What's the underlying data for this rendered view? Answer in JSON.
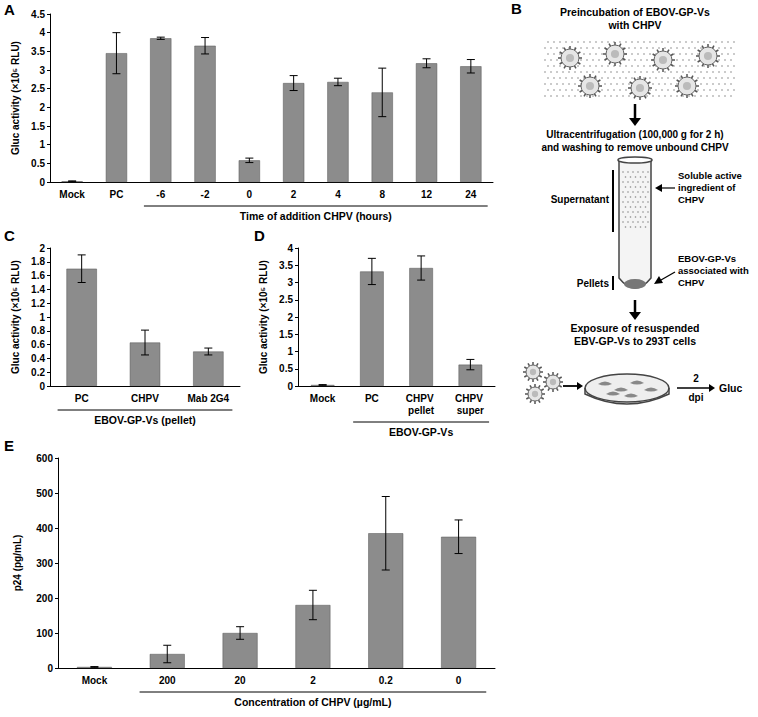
{
  "chart_data": [
    {
      "type": "bar",
      "title": "A",
      "categories": [
        "Mock",
        "PC",
        "-6",
        "-2",
        "0",
        "2",
        "4",
        "8",
        "12",
        "24"
      ],
      "values": [
        0.02,
        3.45,
        3.85,
        3.65,
        0.58,
        2.65,
        2.68,
        2.4,
        3.18,
        3.1
      ],
      "errors": [
        0.01,
        0.55,
        0.03,
        0.22,
        0.06,
        0.2,
        0.1,
        0.65,
        0.12,
        0.18
      ],
      "color": "#8c8c8c",
      "ylabel": "Gluc activity (×10⁵ RLU)",
      "xlabel": "Time of addition CHPV (hours)",
      "xlabel_span": [
        "-6",
        "24"
      ],
      "ylim": [
        0,
        4.5
      ],
      "yticks": [
        0,
        0.5,
        1,
        1.5,
        2,
        2.5,
        3,
        3.5,
        4,
        4.5
      ],
      "grid": false
    },
    {
      "type": "bar",
      "title": "C",
      "categories": [
        "PC",
        "CHPV",
        "Mab 2G4"
      ],
      "values": [
        1.7,
        0.63,
        0.5
      ],
      "errors": [
        0.2,
        0.18,
        0.05
      ],
      "color": "#8c8c8c",
      "ylabel": "Gluc activity (×10⁵ RLU)",
      "xlabel": "EBOV-GP-Vs (pellet)",
      "xlabel_span": [
        "PC",
        "Mab 2G4"
      ],
      "ylim": [
        0,
        2
      ],
      "yticks": [
        0,
        0.2,
        0.4,
        0.6,
        0.8,
        1,
        1.2,
        1.4,
        1.6,
        1.8,
        2
      ],
      "grid": false
    },
    {
      "type": "bar",
      "title": "D",
      "categories": [
        "Mock",
        "PC",
        "CHPV pellet",
        "CHPV super"
      ],
      "values": [
        0.03,
        3.32,
        3.42,
        0.62
      ],
      "errors": [
        0.01,
        0.38,
        0.35,
        0.15
      ],
      "color": "#8c8c8c",
      "ylabel": "Gluc activity (×10⁵ RLU)",
      "xlabel": "EBOV-GP-Vs",
      "xlabel_span": [
        "PC",
        "CHPV super"
      ],
      "ylim": [
        0,
        4
      ],
      "yticks": [
        0,
        0.5,
        1,
        1.5,
        2,
        2.5,
        3,
        3.5,
        4
      ],
      "grid": false
    },
    {
      "type": "bar",
      "title": "E",
      "categories": [
        "Mock",
        "200",
        "20",
        "2",
        "0.2",
        "0"
      ],
      "values": [
        3,
        40,
        100,
        180,
        385,
        375
      ],
      "errors": [
        1,
        25,
        18,
        42,
        105,
        48
      ],
      "color": "#8c8c8c",
      "ylabel": "p24 (pg/mL)",
      "xlabel": "Concentration of CHPV (µg/mL)",
      "xlabel_span": [
        "200",
        "0"
      ],
      "ylim": [
        0,
        600
      ],
      "yticks": [
        0,
        100,
        200,
        300,
        400,
        500,
        600
      ],
      "grid": false
    }
  ],
  "diagram": {
    "title": "B",
    "step1": [
      "Preincubation of EBOV-GP-Vs",
      "with CHPV"
    ],
    "step2": [
      "Ultracentrifugation (100,000 g for 2 h)",
      "and washing to remove unbound CHPV"
    ],
    "tube_left": [
      "Supernatant",
      "Pellets"
    ],
    "tube_right": [
      [
        "Soluble active",
        "ingredient of",
        "CHPV"
      ],
      [
        "EBOV-GP-Vs",
        "associated with",
        "CHPV"
      ]
    ],
    "step3": [
      "Exposure of resuspended",
      "EBV-GP-Vs to 293T cells"
    ],
    "time": [
      "2",
      "dpi"
    ],
    "readout": "Gluc"
  }
}
